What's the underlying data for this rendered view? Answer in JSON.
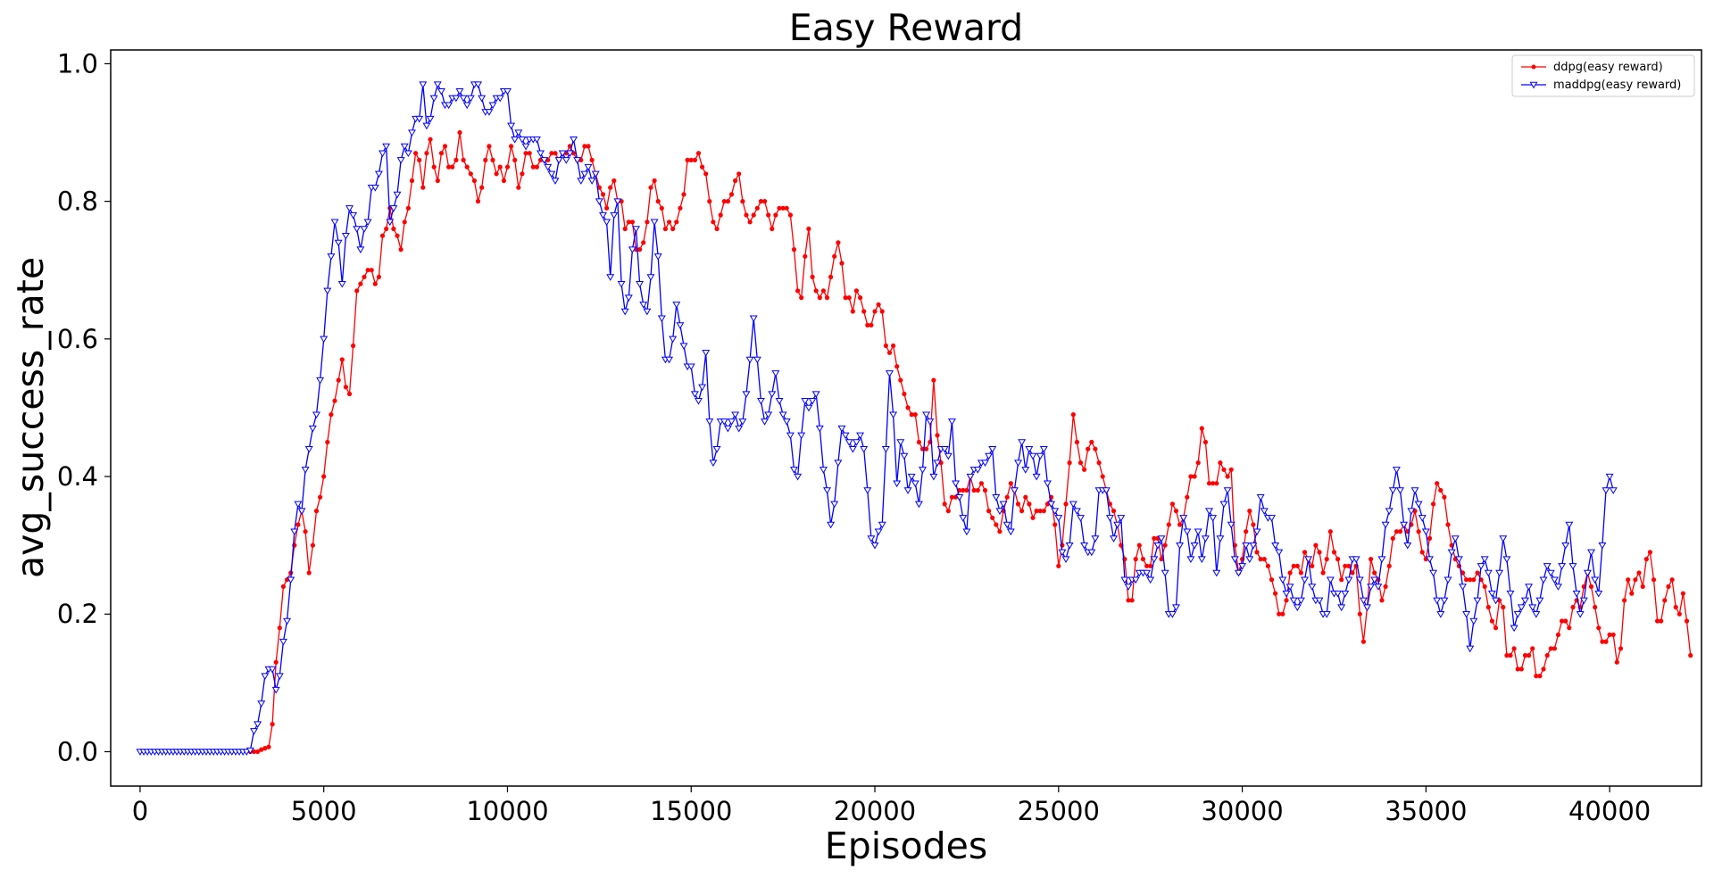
{
  "chart_data": {
    "type": "line",
    "title": "Easy Reward",
    "xlabel": "Episodes",
    "ylabel": "avg_success_rate",
    "xlim": [
      -800,
      42500
    ],
    "ylim": [
      -0.05,
      1.02
    ],
    "xticks": [
      0,
      5000,
      10000,
      15000,
      20000,
      25000,
      30000,
      35000,
      40000
    ],
    "yticks": [
      0.0,
      0.2,
      0.4,
      0.6,
      0.8,
      1.0
    ],
    "ytick_labels": [
      "0.0",
      "0.2",
      "0.4",
      "0.6",
      "0.8",
      "1.0"
    ],
    "legend": "top-right",
    "grid": false,
    "series": [
      {
        "name": "ddpg(easy reward)",
        "color": "#ff0000",
        "marker": "dot",
        "x_start": 3000,
        "x_step": 100,
        "values": [
          0.0,
          0.0,
          0.0,
          0.003,
          0.005,
          0.007,
          0.04,
          0.13,
          0.18,
          0.24,
          0.25,
          0.26,
          0.3,
          0.33,
          0.35,
          0.32,
          0.26,
          0.3,
          0.35,
          0.37,
          0.4,
          0.45,
          0.49,
          0.51,
          0.54,
          0.57,
          0.53,
          0.52,
          0.59,
          0.67,
          0.68,
          0.69,
          0.7,
          0.7,
          0.68,
          0.69,
          0.75,
          0.76,
          0.79,
          0.76,
          0.75,
          0.73,
          0.77,
          0.79,
          0.83,
          0.87,
          0.86,
          0.82,
          0.87,
          0.89,
          0.85,
          0.83,
          0.87,
          0.88,
          0.85,
          0.85,
          0.86,
          0.9,
          0.86,
          0.85,
          0.84,
          0.83,
          0.8,
          0.82,
          0.86,
          0.88,
          0.86,
          0.84,
          0.85,
          0.83,
          0.85,
          0.88,
          0.86,
          0.82,
          0.84,
          0.87,
          0.87,
          0.85,
          0.85,
          0.86,
          0.86,
          0.86,
          0.87,
          0.87,
          0.86,
          0.87,
          0.87,
          0.88,
          0.87,
          0.86,
          0.86,
          0.88,
          0.88,
          0.86,
          0.84,
          0.82,
          0.81,
          0.79,
          0.82,
          0.83,
          0.8,
          0.8,
          0.76,
          0.77,
          0.77,
          0.73,
          0.73,
          0.74,
          0.77,
          0.82,
          0.83,
          0.8,
          0.79,
          0.76,
          0.77,
          0.76,
          0.77,
          0.79,
          0.81,
          0.86,
          0.86,
          0.86,
          0.87,
          0.85,
          0.84,
          0.8,
          0.77,
          0.76,
          0.78,
          0.8,
          0.8,
          0.81,
          0.83,
          0.84,
          0.8,
          0.78,
          0.77,
          0.78,
          0.79,
          0.8,
          0.8,
          0.78,
          0.76,
          0.78,
          0.79,
          0.79,
          0.79,
          0.78,
          0.73,
          0.67,
          0.66,
          0.72,
          0.76,
          0.69,
          0.67,
          0.66,
          0.67,
          0.66,
          0.69,
          0.72,
          0.74,
          0.71,
          0.66,
          0.66,
          0.64,
          0.67,
          0.66,
          0.64,
          0.62,
          0.62,
          0.64,
          0.65,
          0.64,
          0.59,
          0.58,
          0.59,
          0.56,
          0.54,
          0.52,
          0.5,
          0.49,
          0.49,
          0.45,
          0.44,
          0.44,
          0.45,
          0.54,
          0.46,
          0.42,
          0.36,
          0.35,
          0.37,
          0.37,
          0.38,
          0.38,
          0.38,
          0.4,
          0.38,
          0.38,
          0.39,
          0.38,
          0.35,
          0.34,
          0.33,
          0.32,
          0.35,
          0.37,
          0.39,
          0.38,
          0.36,
          0.35,
          0.37,
          0.36,
          0.34,
          0.35,
          0.35,
          0.35,
          0.36,
          0.37,
          0.33,
          0.27,
          0.3,
          0.36,
          0.42,
          0.49,
          0.45,
          0.42,
          0.41,
          0.44,
          0.45,
          0.44,
          0.42,
          0.4,
          0.38,
          0.36,
          0.35,
          0.33,
          0.3,
          0.28,
          0.22,
          0.22,
          0.28,
          0.3,
          0.28,
          0.27,
          0.27,
          0.31,
          0.31,
          0.28,
          0.3,
          0.33,
          0.36,
          0.35,
          0.33,
          0.34,
          0.37,
          0.4,
          0.4,
          0.42,
          0.47,
          0.45,
          0.39,
          0.39,
          0.39,
          0.42,
          0.41,
          0.4,
          0.41,
          0.3,
          0.26,
          0.28,
          0.32,
          0.35,
          0.33,
          0.29,
          0.28,
          0.28,
          0.27,
          0.25,
          0.23,
          0.2,
          0.2,
          0.22,
          0.26,
          0.27,
          0.27,
          0.26,
          0.29,
          0.28,
          0.27,
          0.3,
          0.29,
          0.26,
          0.28,
          0.32,
          0.29,
          0.28,
          0.25,
          0.27,
          0.27,
          0.26,
          0.27,
          0.2,
          0.16,
          0.21,
          0.28,
          0.26,
          0.25,
          0.22,
          0.24,
          0.27,
          0.31,
          0.32,
          0.32,
          0.33,
          0.32,
          0.33,
          0.35,
          0.32,
          0.29,
          0.28,
          0.31,
          0.36,
          0.39,
          0.38,
          0.37,
          0.33,
          0.3,
          0.28,
          0.27,
          0.26,
          0.25,
          0.25,
          0.25,
          0.26,
          0.25,
          0.24,
          0.21,
          0.19,
          0.18,
          0.22,
          0.21,
          0.14,
          0.14,
          0.15,
          0.12,
          0.12,
          0.14,
          0.14,
          0.15,
          0.11,
          0.11,
          0.12,
          0.14,
          0.15,
          0.15,
          0.17,
          0.19,
          0.19,
          0.18,
          0.21,
          0.22,
          0.21,
          0.24,
          0.26,
          0.24,
          0.21,
          0.18,
          0.16,
          0.16,
          0.17,
          0.17,
          0.13,
          0.15,
          0.22,
          0.25,
          0.23,
          0.25,
          0.26,
          0.24,
          0.28,
          0.29,
          0.25,
          0.19,
          0.19,
          0.22,
          0.24,
          0.25,
          0.21,
          0.2,
          0.23,
          0.19,
          0.14
        ]
      },
      {
        "name": "maddpg(easy reward)",
        "color": "#0000ff",
        "marker": "triangle-down",
        "x_start": 0,
        "x_step": 100,
        "values": [
          0.0,
          0.0,
          0.0,
          0.0,
          0.0,
          0.0,
          0.0,
          0.0,
          0.0,
          0.0,
          0.0,
          0.0,
          0.0,
          0.0,
          0.0,
          0.0,
          0.0,
          0.0,
          0.0,
          0.0,
          0.0,
          0.0,
          0.0,
          0.0,
          0.0,
          0.0,
          0.0,
          0.0,
          0.0,
          0.0,
          0.002,
          0.03,
          0.04,
          0.07,
          0.11,
          0.12,
          0.12,
          0.09,
          0.11,
          0.16,
          0.19,
          0.25,
          0.32,
          0.36,
          0.35,
          0.41,
          0.44,
          0.47,
          0.49,
          0.54,
          0.6,
          0.67,
          0.72,
          0.77,
          0.74,
          0.68,
          0.75,
          0.79,
          0.78,
          0.76,
          0.73,
          0.76,
          0.77,
          0.82,
          0.82,
          0.84,
          0.87,
          0.88,
          0.77,
          0.79,
          0.81,
          0.86,
          0.88,
          0.87,
          0.9,
          0.92,
          0.92,
          0.97,
          0.91,
          0.92,
          0.95,
          0.97,
          0.96,
          0.94,
          0.94,
          0.95,
          0.95,
          0.96,
          0.95,
          0.94,
          0.95,
          0.97,
          0.97,
          0.95,
          0.93,
          0.93,
          0.94,
          0.95,
          0.95,
          0.96,
          0.96,
          0.91,
          0.89,
          0.9,
          0.89,
          0.88,
          0.89,
          0.89,
          0.89,
          0.87,
          0.86,
          0.85,
          0.84,
          0.83,
          0.86,
          0.87,
          0.86,
          0.87,
          0.89,
          0.86,
          0.83,
          0.84,
          0.85,
          0.83,
          0.84,
          0.8,
          0.78,
          0.77,
          0.69,
          0.78,
          0.8,
          0.68,
          0.64,
          0.66,
          0.73,
          0.76,
          0.68,
          0.65,
          0.64,
          0.69,
          0.77,
          0.72,
          0.63,
          0.57,
          0.57,
          0.6,
          0.65,
          0.62,
          0.59,
          0.56,
          0.56,
          0.52,
          0.51,
          0.53,
          0.58,
          0.48,
          0.42,
          0.44,
          0.48,
          0.48,
          0.47,
          0.48,
          0.49,
          0.47,
          0.48,
          0.52,
          0.57,
          0.63,
          0.57,
          0.51,
          0.48,
          0.49,
          0.52,
          0.55,
          0.51,
          0.49,
          0.48,
          0.46,
          0.41,
          0.4,
          0.46,
          0.51,
          0.5,
          0.51,
          0.52,
          0.47,
          0.41,
          0.38,
          0.33,
          0.36,
          0.42,
          0.47,
          0.46,
          0.45,
          0.44,
          0.45,
          0.46,
          0.44,
          0.38,
          0.31,
          0.3,
          0.32,
          0.33,
          0.44,
          0.55,
          0.49,
          0.39,
          0.45,
          0.43,
          0.38,
          0.4,
          0.39,
          0.36,
          0.41,
          0.49,
          0.48,
          0.4,
          0.42,
          0.44,
          0.44,
          0.43,
          0.48,
          0.39,
          0.37,
          0.34,
          0.32,
          0.4,
          0.41,
          0.41,
          0.42,
          0.42,
          0.43,
          0.44,
          0.37,
          0.35,
          0.36,
          0.33,
          0.32,
          0.38,
          0.42,
          0.45,
          0.41,
          0.44,
          0.43,
          0.4,
          0.43,
          0.44,
          0.39,
          0.36,
          0.35,
          0.34,
          0.29,
          0.28,
          0.3,
          0.36,
          0.35,
          0.34,
          0.3,
          0.29,
          0.29,
          0.31,
          0.38,
          0.38,
          0.38,
          0.34,
          0.31,
          0.33,
          0.34,
          0.25,
          0.24,
          0.25,
          0.25,
          0.26,
          0.26,
          0.26,
          0.25,
          0.28,
          0.3,
          0.31,
          0.26,
          0.2,
          0.2,
          0.21,
          0.3,
          0.34,
          0.32,
          0.28,
          0.3,
          0.32,
          0.28,
          0.31,
          0.35,
          0.34,
          0.26,
          0.31,
          0.36,
          0.38,
          0.33,
          0.28,
          0.26,
          0.27,
          0.3,
          0.28,
          0.3,
          0.32,
          0.37,
          0.35,
          0.34,
          0.34,
          0.3,
          0.29,
          0.25,
          0.23,
          0.24,
          0.22,
          0.21,
          0.22,
          0.25,
          0.28,
          0.24,
          0.22,
          0.22,
          0.2,
          0.2,
          0.25,
          0.23,
          0.23,
          0.21,
          0.23,
          0.25,
          0.28,
          0.28,
          0.25,
          0.22,
          0.21,
          0.24,
          0.25,
          0.24,
          0.28,
          0.33,
          0.35,
          0.38,
          0.41,
          0.38,
          0.33,
          0.3,
          0.35,
          0.38,
          0.36,
          0.34,
          0.32,
          0.28,
          0.26,
          0.22,
          0.2,
          0.22,
          0.25,
          0.29,
          0.31,
          0.28,
          0.24,
          0.2,
          0.15,
          0.19,
          0.22,
          0.27,
          0.28,
          0.26,
          0.23,
          0.22,
          0.26,
          0.31,
          0.28,
          0.23,
          0.18,
          0.2,
          0.21,
          0.22,
          0.24,
          0.21,
          0.2,
          0.22,
          0.25,
          0.27,
          0.26,
          0.25,
          0.24,
          0.27,
          0.3,
          0.33,
          0.27,
          0.23,
          0.2,
          0.22,
          0.26,
          0.29,
          0.25,
          0.23,
          0.3,
          0.38,
          0.4,
          0.38
        ]
      }
    ]
  }
}
